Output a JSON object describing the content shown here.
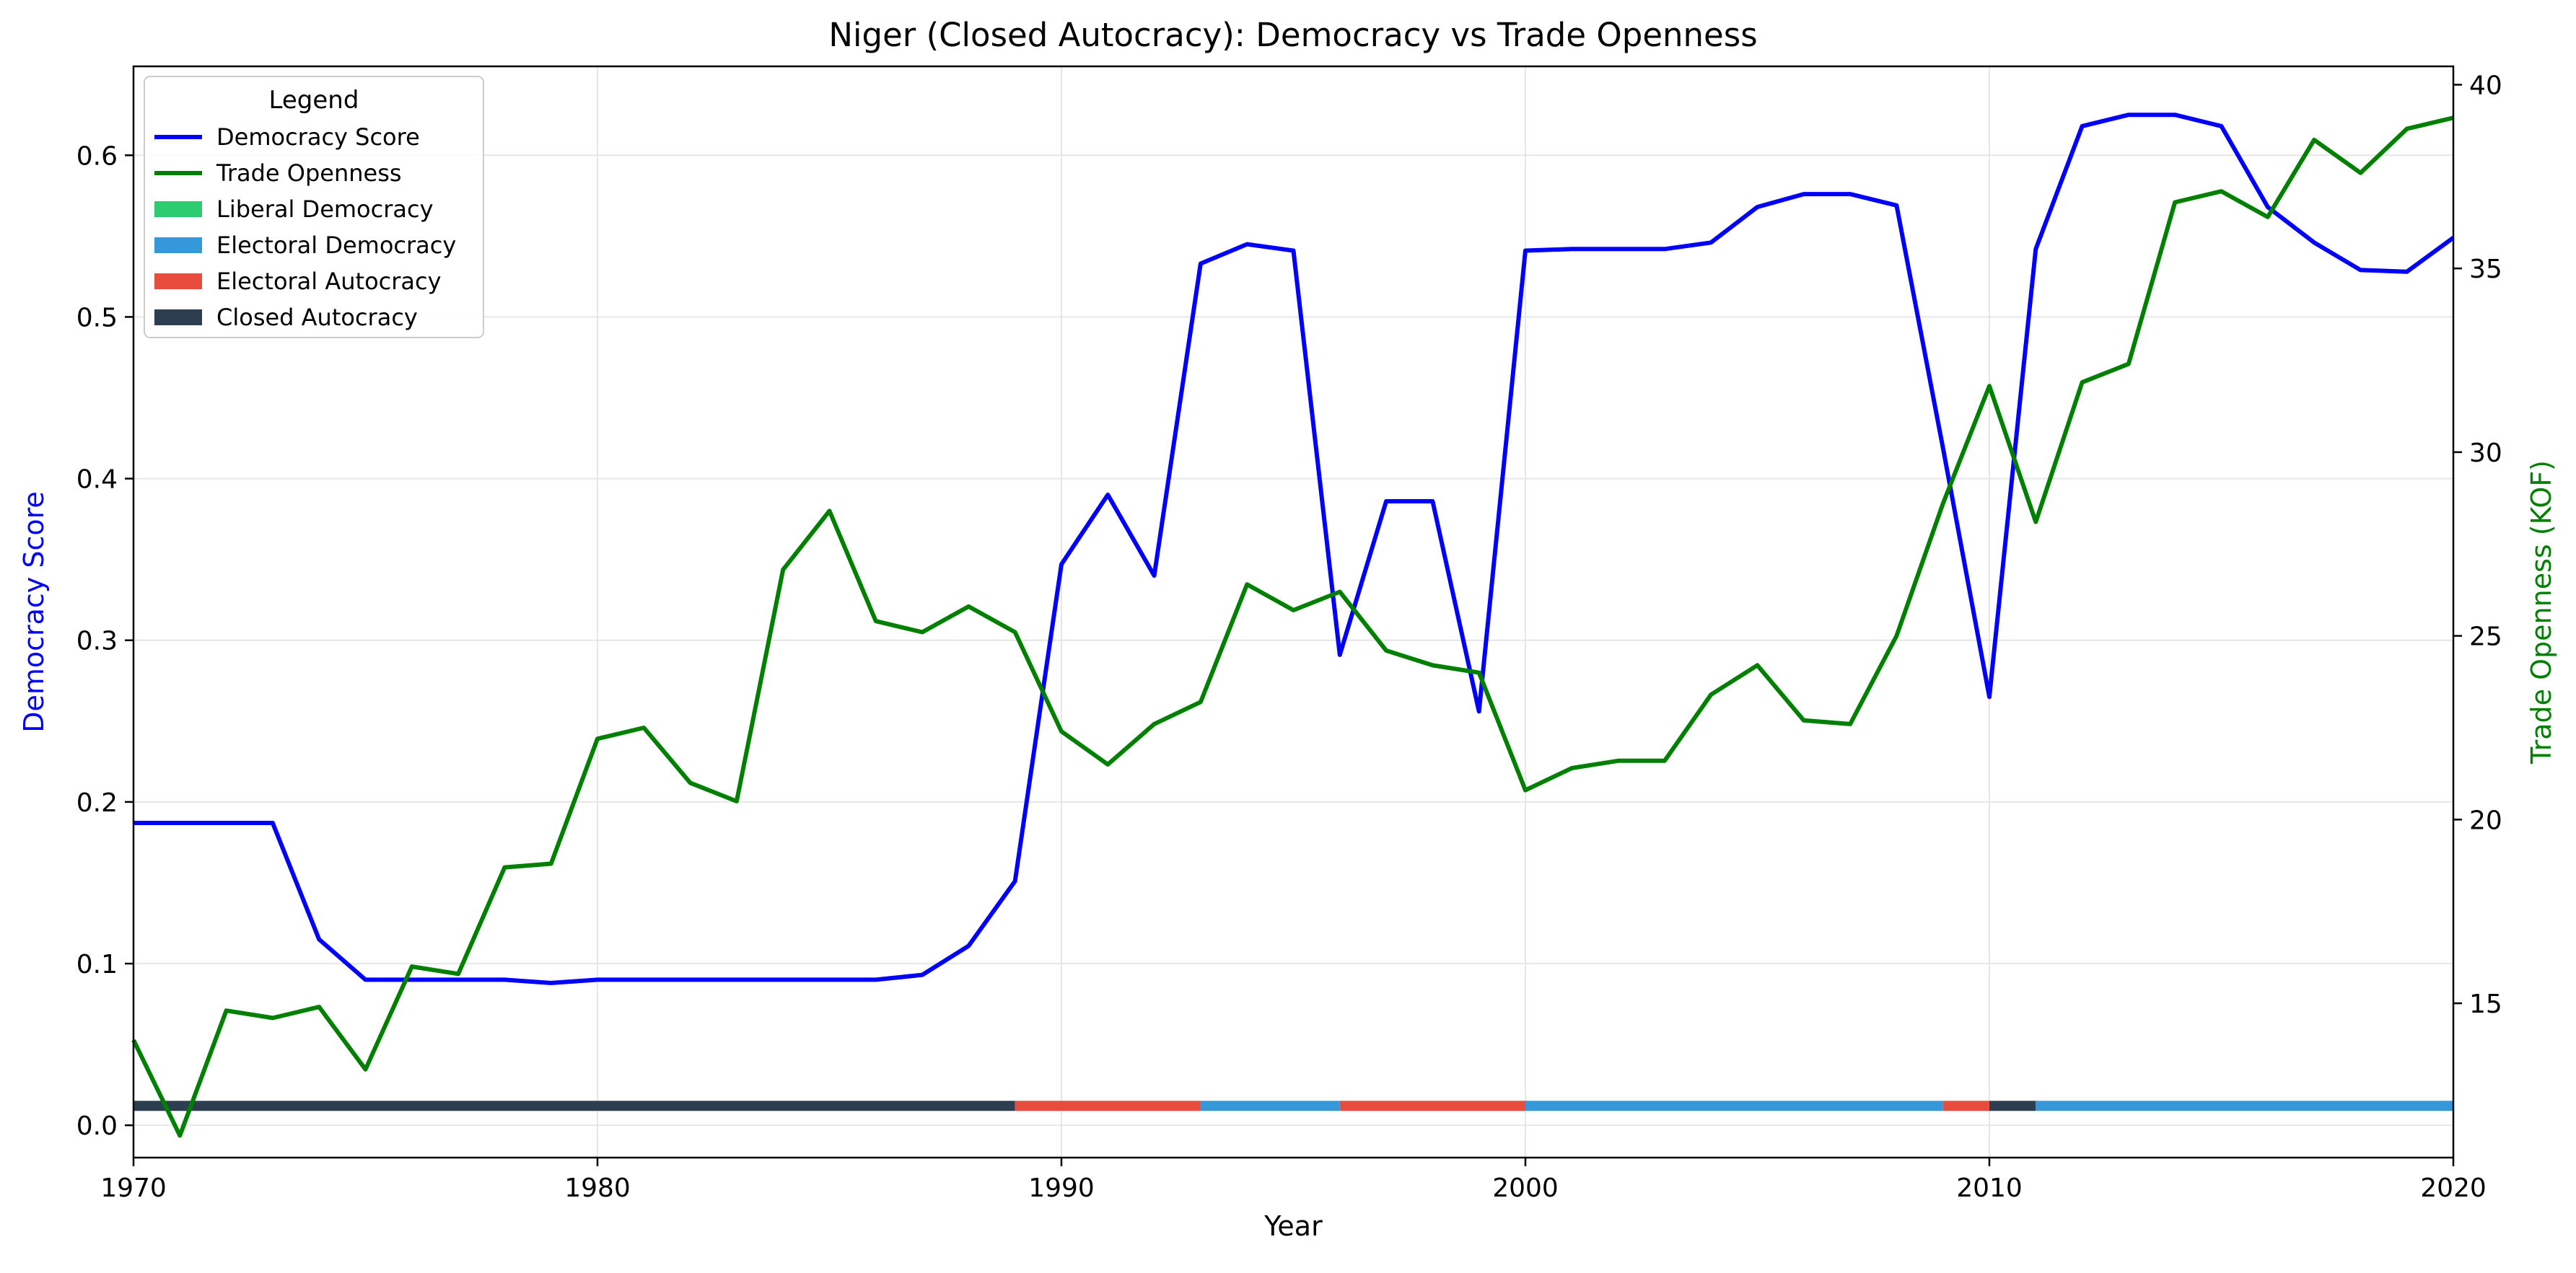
{
  "chart_data": {
    "type": "line",
    "title": "Niger (Closed Autocracy): Democracy vs Trade Openness",
    "xlabel": "Year",
    "ylabel": "Democracy Score",
    "y2label": "Trade Openness (KOF)",
    "xlim": [
      1970,
      2020
    ],
    "ylim": [
      -0.02,
      0.655
    ],
    "y2lim": [
      10.8,
      40.5
    ],
    "x_ticks": [
      "1970",
      "1980",
      "1990",
      "2000",
      "2010",
      "2020"
    ],
    "y_ticks": [
      "0.0",
      "0.1",
      "0.2",
      "0.3",
      "0.4",
      "0.5",
      "0.6"
    ],
    "y2_ticks": [
      "15",
      "20",
      "25",
      "30",
      "35",
      "40"
    ],
    "grid": true,
    "legend": {
      "title": "Legend",
      "placement": "top-left",
      "entries": [
        {
          "label": "Democracy Score",
          "kind": "line",
          "color": "#0000ff"
        },
        {
          "label": "Trade Openness",
          "kind": "line",
          "color": "#008000"
        },
        {
          "label": "Liberal Democracy",
          "kind": "patch",
          "color": "#2ecc71"
        },
        {
          "label": "Electoral Democracy",
          "kind": "patch",
          "color": "#3498db"
        },
        {
          "label": "Electoral Autocracy",
          "kind": "patch",
          "color": "#e74c3c"
        },
        {
          "label": "Closed Autocracy",
          "kind": "patch",
          "color": "#2c3e50"
        }
      ]
    },
    "series": [
      {
        "name": "Democracy Score",
        "axis": "left",
        "color": "#0000ff",
        "x": [
          1970,
          1971,
          1972,
          1973,
          1974,
          1975,
          1976,
          1977,
          1978,
          1979,
          1980,
          1981,
          1982,
          1983,
          1984,
          1985,
          1986,
          1987,
          1988,
          1989,
          1990,
          1991,
          1992,
          1993,
          1994,
          1995,
          1996,
          1997,
          1998,
          1999,
          2000,
          2001,
          2002,
          2003,
          2004,
          2005,
          2006,
          2007,
          2008,
          2009,
          2010,
          2011,
          2012,
          2013,
          2014,
          2015,
          2016,
          2017,
          2018,
          2019,
          2020
        ],
        "y": [
          0.187,
          0.187,
          0.187,
          0.187,
          0.115,
          0.09,
          0.09,
          0.09,
          0.09,
          0.088,
          0.09,
          0.09,
          0.09,
          0.09,
          0.09,
          0.09,
          0.09,
          0.093,
          0.111,
          0.151,
          0.347,
          0.39,
          0.34,
          0.533,
          0.545,
          0.541,
          0.291,
          0.386,
          0.386,
          0.256,
          0.541,
          0.542,
          0.542,
          0.542,
          0.546,
          0.568,
          0.576,
          0.576,
          0.569,
          0.419,
          0.265,
          0.542,
          0.618,
          0.625,
          0.625,
          0.618,
          0.568,
          0.546,
          0.529,
          0.528,
          0.549
        ]
      },
      {
        "name": "Trade Openness",
        "axis": "right",
        "color": "#008000",
        "x": [
          1970,
          1971,
          1972,
          1973,
          1974,
          1975,
          1976,
          1977,
          1978,
          1979,
          1980,
          1981,
          1982,
          1983,
          1984,
          1985,
          1986,
          1987,
          1988,
          1989,
          1990,
          1991,
          1992,
          1993,
          1994,
          1995,
          1996,
          1997,
          1998,
          1999,
          2000,
          2001,
          2002,
          2003,
          2004,
          2005,
          2006,
          2007,
          2008,
          2009,
          2010,
          2011,
          2012,
          2013,
          2014,
          2015,
          2016,
          2017,
          2018,
          2019,
          2020
        ],
        "y": [
          14.0,
          11.4,
          14.8,
          14.6,
          14.9,
          13.2,
          16.0,
          15.8,
          18.7,
          18.8,
          22.2,
          22.5,
          21.0,
          20.5,
          26.8,
          28.4,
          25.4,
          25.1,
          25.8,
          25.1,
          22.4,
          21.5,
          22.6,
          23.2,
          26.4,
          25.7,
          26.2,
          24.6,
          24.2,
          24.0,
          20.8,
          21.4,
          21.6,
          21.6,
          23.4,
          24.2,
          22.7,
          22.6,
          25.0,
          28.6,
          31.8,
          28.1,
          31.9,
          32.4,
          36.8,
          37.1,
          36.4,
          38.5,
          37.6,
          38.8,
          39.1
        ]
      }
    ],
    "regime_bar": {
      "y": 0.012,
      "segments": [
        {
          "start": 1970,
          "end": 1989,
          "regime": "Closed Autocracy",
          "color": "#2c3e50"
        },
        {
          "start": 1989,
          "end": 1993,
          "regime": "Electoral Autocracy",
          "color": "#e74c3c"
        },
        {
          "start": 1993,
          "end": 1996,
          "regime": "Electoral Democracy",
          "color": "#3498db"
        },
        {
          "start": 1996,
          "end": 2000,
          "regime": "Electoral Autocracy",
          "color": "#e74c3c"
        },
        {
          "start": 2000,
          "end": 2009,
          "regime": "Electoral Democracy",
          "color": "#3498db"
        },
        {
          "start": 2009,
          "end": 2010,
          "regime": "Electoral Autocracy",
          "color": "#e74c3c"
        },
        {
          "start": 2010,
          "end": 2011,
          "regime": "Closed Autocracy",
          "color": "#2c3e50"
        },
        {
          "start": 2011,
          "end": 2020,
          "regime": "Electoral Democracy",
          "color": "#3498db"
        }
      ]
    }
  }
}
